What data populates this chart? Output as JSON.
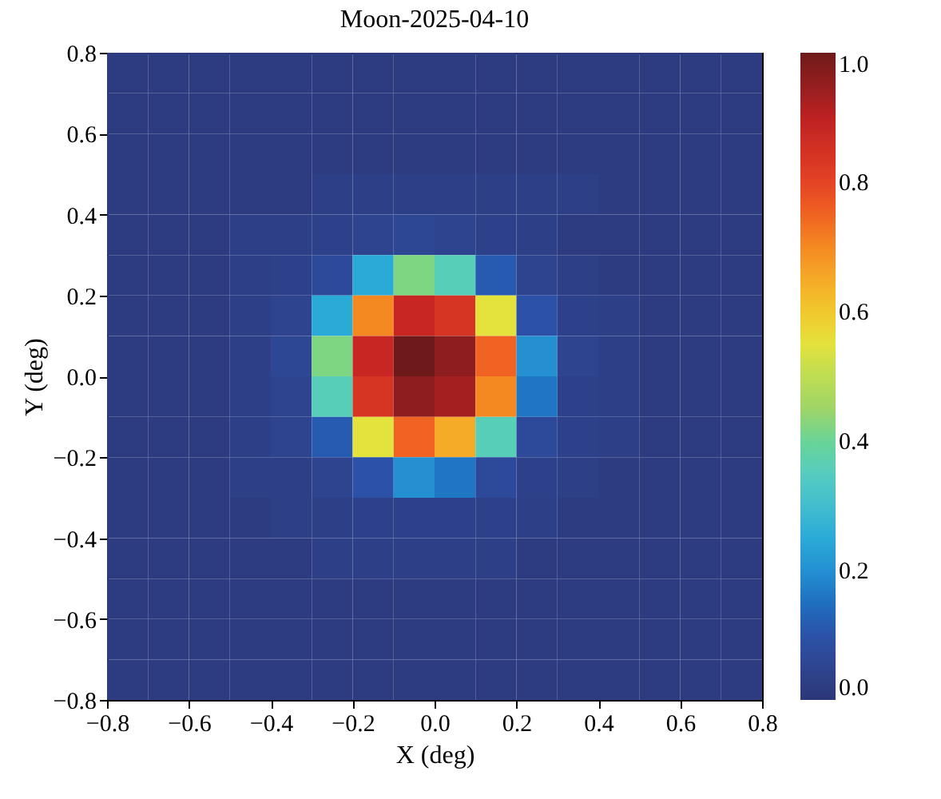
{
  "chart_data": {
    "type": "heatmap",
    "title": "Moon-2025-04-10",
    "xlabel": "X (deg)",
    "ylabel": "Y (deg)",
    "xlim": [
      -0.8,
      0.8
    ],
    "ylim": [
      -0.8,
      0.8
    ],
    "xticks": [
      {
        "value": -0.8,
        "label": "−0.8"
      },
      {
        "value": -0.6,
        "label": "−0.6"
      },
      {
        "value": -0.4,
        "label": "−0.4"
      },
      {
        "value": -0.2,
        "label": "−0.2"
      },
      {
        "value": 0,
        "label": "0.0"
      },
      {
        "value": 0.2,
        "label": "0.2"
      },
      {
        "value": 0.4,
        "label": "0.4"
      },
      {
        "value": 0.6,
        "label": "0.6"
      },
      {
        "value": 0.8,
        "label": "0.8"
      }
    ],
    "yticks": [
      {
        "value": -0.8,
        "label": "−0.8"
      },
      {
        "value": -0.6,
        "label": "−0.6"
      },
      {
        "value": -0.4,
        "label": "−0.4"
      },
      {
        "value": -0.2,
        "label": "−0.2"
      },
      {
        "value": 0,
        "label": "0.0"
      },
      {
        "value": 0.2,
        "label": "0.2"
      },
      {
        "value": 0.4,
        "label": "0.4"
      },
      {
        "value": 0.6,
        "label": "0.6"
      },
      {
        "value": 0.8,
        "label": "0.8"
      }
    ],
    "clim": [
      0,
      1
    ],
    "cticks": [
      {
        "value": 0,
        "label": "0.0"
      },
      {
        "value": 0.2,
        "label": "0.2"
      },
      {
        "value": 0.4,
        "label": "0.4"
      },
      {
        "value": 0.6,
        "label": "0.6"
      },
      {
        "value": 0.8,
        "label": "0.8"
      },
      {
        "value": 1,
        "label": "1.0"
      }
    ],
    "cells": [
      [
        0.02,
        0.02,
        0.02,
        0.02,
        0.02,
        0.02,
        0.02,
        0.02,
        0.02,
        0.02,
        0.02,
        0.02,
        0.02,
        0.02,
        0.02,
        0.02
      ],
      [
        0.02,
        0.02,
        0.02,
        0.02,
        0.02,
        0.02,
        0.02,
        0.02,
        0.02,
        0.02,
        0.02,
        0.02,
        0.02,
        0.02,
        0.02,
        0.02
      ],
      [
        0.02,
        0.02,
        0.02,
        0.02,
        0.02,
        0.02,
        0.02,
        0.02,
        0.02,
        0.02,
        0.02,
        0.02,
        0.02,
        0.02,
        0.02,
        0.02
      ],
      [
        0.02,
        0.02,
        0.02,
        0.02,
        0.02,
        0.03,
        0.03,
        0.03,
        0.03,
        0.03,
        0.03,
        0.03,
        0.02,
        0.02,
        0.02,
        0.02
      ],
      [
        0.02,
        0.02,
        0.02,
        0.03,
        0.03,
        0.04,
        0.05,
        0.06,
        0.05,
        0.04,
        0.03,
        0.02,
        0.02,
        0.02,
        0.02,
        0.02
      ],
      [
        0.02,
        0.02,
        0.02,
        0.03,
        0.04,
        0.07,
        0.25,
        0.42,
        0.36,
        0.12,
        0.05,
        0.03,
        0.02,
        0.02,
        0.02,
        0.02
      ],
      [
        0.02,
        0.02,
        0.02,
        0.03,
        0.05,
        0.25,
        0.7,
        0.88,
        0.84,
        0.55,
        0.1,
        0.04,
        0.03,
        0.02,
        0.02,
        0.02
      ],
      [
        0.02,
        0.02,
        0.02,
        0.03,
        0.06,
        0.42,
        0.88,
        1.0,
        0.96,
        0.75,
        0.2,
        0.05,
        0.03,
        0.02,
        0.02,
        0.02
      ],
      [
        0.02,
        0.02,
        0.02,
        0.03,
        0.05,
        0.36,
        0.84,
        0.96,
        0.93,
        0.7,
        0.16,
        0.04,
        0.03,
        0.02,
        0.02,
        0.02
      ],
      [
        0.02,
        0.02,
        0.02,
        0.03,
        0.05,
        0.12,
        0.55,
        0.75,
        0.65,
        0.36,
        0.07,
        0.04,
        0.03,
        0.02,
        0.02,
        0.02
      ],
      [
        0.02,
        0.02,
        0.02,
        0.03,
        0.03,
        0.05,
        0.1,
        0.2,
        0.16,
        0.07,
        0.04,
        0.03,
        0.02,
        0.02,
        0.02,
        0.02
      ],
      [
        0.02,
        0.02,
        0.02,
        0.02,
        0.03,
        0.03,
        0.04,
        0.04,
        0.04,
        0.04,
        0.03,
        0.02,
        0.02,
        0.02,
        0.02,
        0.02
      ],
      [
        0.02,
        0.02,
        0.02,
        0.02,
        0.02,
        0.03,
        0.03,
        0.03,
        0.03,
        0.03,
        0.02,
        0.02,
        0.02,
        0.02,
        0.02,
        0.02
      ],
      [
        0.02,
        0.02,
        0.02,
        0.02,
        0.02,
        0.02,
        0.02,
        0.02,
        0.02,
        0.02,
        0.02,
        0.02,
        0.02,
        0.02,
        0.02,
        0.02
      ],
      [
        0.02,
        0.02,
        0.02,
        0.02,
        0.02,
        0.02,
        0.02,
        0.02,
        0.02,
        0.02,
        0.02,
        0.02,
        0.02,
        0.02,
        0.02,
        0.02
      ],
      [
        0.02,
        0.02,
        0.02,
        0.02,
        0.02,
        0.02,
        0.02,
        0.02,
        0.02,
        0.02,
        0.02,
        0.02,
        0.02,
        0.02,
        0.02,
        0.02
      ]
    ]
  }
}
